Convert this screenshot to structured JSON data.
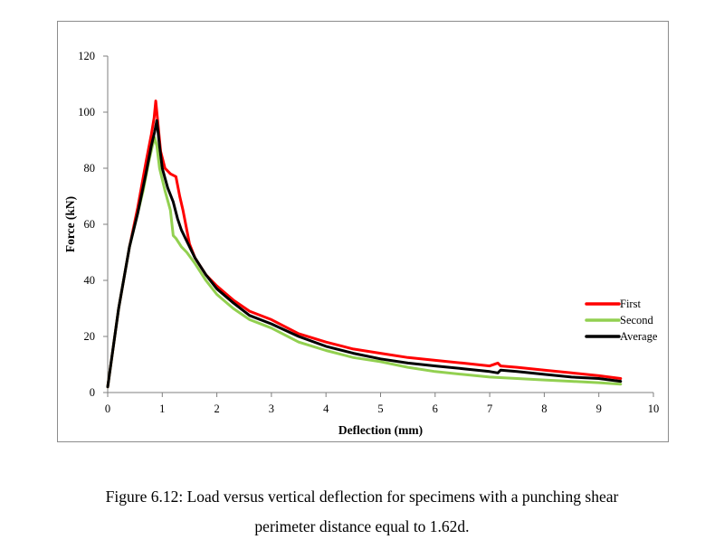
{
  "chart_data": {
    "type": "line",
    "title": "",
    "xlabel": "Deflection (mm)",
    "ylabel": "Force (kN)",
    "xlim": [
      0,
      10
    ],
    "ylim": [
      0,
      120
    ],
    "xticks": [
      0,
      1,
      2,
      3,
      4,
      5,
      6,
      7,
      8,
      9,
      10
    ],
    "yticks": [
      0,
      20,
      40,
      60,
      80,
      100,
      120
    ],
    "grid": false,
    "legend_position": "right",
    "series": [
      {
        "name": "First",
        "color": "#ff0000",
        "x": [
          0,
          0.2,
          0.4,
          0.55,
          0.7,
          0.8,
          0.85,
          0.88,
          0.92,
          0.97,
          1.05,
          1.15,
          1.25,
          1.32,
          1.38,
          1.45,
          1.5,
          1.6,
          1.8,
          2.0,
          2.3,
          2.6,
          3.0,
          3.5,
          4.0,
          4.5,
          5.0,
          5.5,
          6.0,
          6.5,
          7.0,
          7.15,
          7.2,
          7.5,
          8.0,
          8.5,
          9.0,
          9.4
        ],
        "y": [
          2,
          30,
          52,
          66,
          82,
          92,
          98,
          104,
          96,
          86,
          80,
          78,
          77,
          70,
          65,
          58,
          53,
          48,
          42,
          38,
          33,
          29,
          26,
          21,
          18,
          15.5,
          14,
          12.5,
          11.5,
          10.5,
          9.5,
          10.5,
          9.5,
          9,
          8,
          7,
          6,
          5
        ]
      },
      {
        "name": "Second",
        "color": "#92d050",
        "x": [
          0,
          0.2,
          0.4,
          0.55,
          0.65,
          0.75,
          0.82,
          0.86,
          0.9,
          0.95,
          1.05,
          1.15,
          1.2,
          1.25,
          1.35,
          1.45,
          1.6,
          1.8,
          2.0,
          2.3,
          2.6,
          3.0,
          3.5,
          4.0,
          4.5,
          5.0,
          5.5,
          6.0,
          6.5,
          7.0,
          7.5,
          8.0,
          8.5,
          9.0,
          9.4
        ],
        "y": [
          2,
          30,
          52,
          64,
          72,
          82,
          88,
          91,
          88,
          80,
          72,
          65,
          56,
          55,
          52,
          50,
          46,
          40,
          35,
          30,
          26,
          23,
          18,
          15,
          12.5,
          11,
          9,
          7.5,
          6.5,
          5.5,
          5,
          4.5,
          4,
          3.5,
          3
        ]
      },
      {
        "name": "Average",
        "color": "#000000",
        "x": [
          0,
          0.2,
          0.4,
          0.55,
          0.7,
          0.8,
          0.86,
          0.9,
          0.95,
          1.0,
          1.1,
          1.2,
          1.28,
          1.35,
          1.45,
          1.6,
          1.8,
          2.0,
          2.3,
          2.6,
          3.0,
          3.5,
          4.0,
          4.5,
          5.0,
          5.5,
          6.0,
          6.5,
          7.0,
          7.15,
          7.2,
          7.5,
          8.0,
          8.5,
          9.0,
          9.4
        ],
        "y": [
          2,
          30,
          52,
          64,
          78,
          88,
          93,
          97,
          88,
          80,
          73,
          68,
          62,
          58,
          54,
          48,
          42,
          37,
          32,
          27.5,
          24.5,
          20,
          16.5,
          14,
          12,
          10.5,
          9.5,
          8.5,
          7.5,
          7,
          8,
          7.5,
          6.5,
          5.5,
          5,
          4
        ]
      }
    ]
  },
  "caption": {
    "line1": "Figure 6.12: Load versus vertical deflection for specimens with a punching shear",
    "line2": "perimeter distance equal to 1.62d."
  }
}
